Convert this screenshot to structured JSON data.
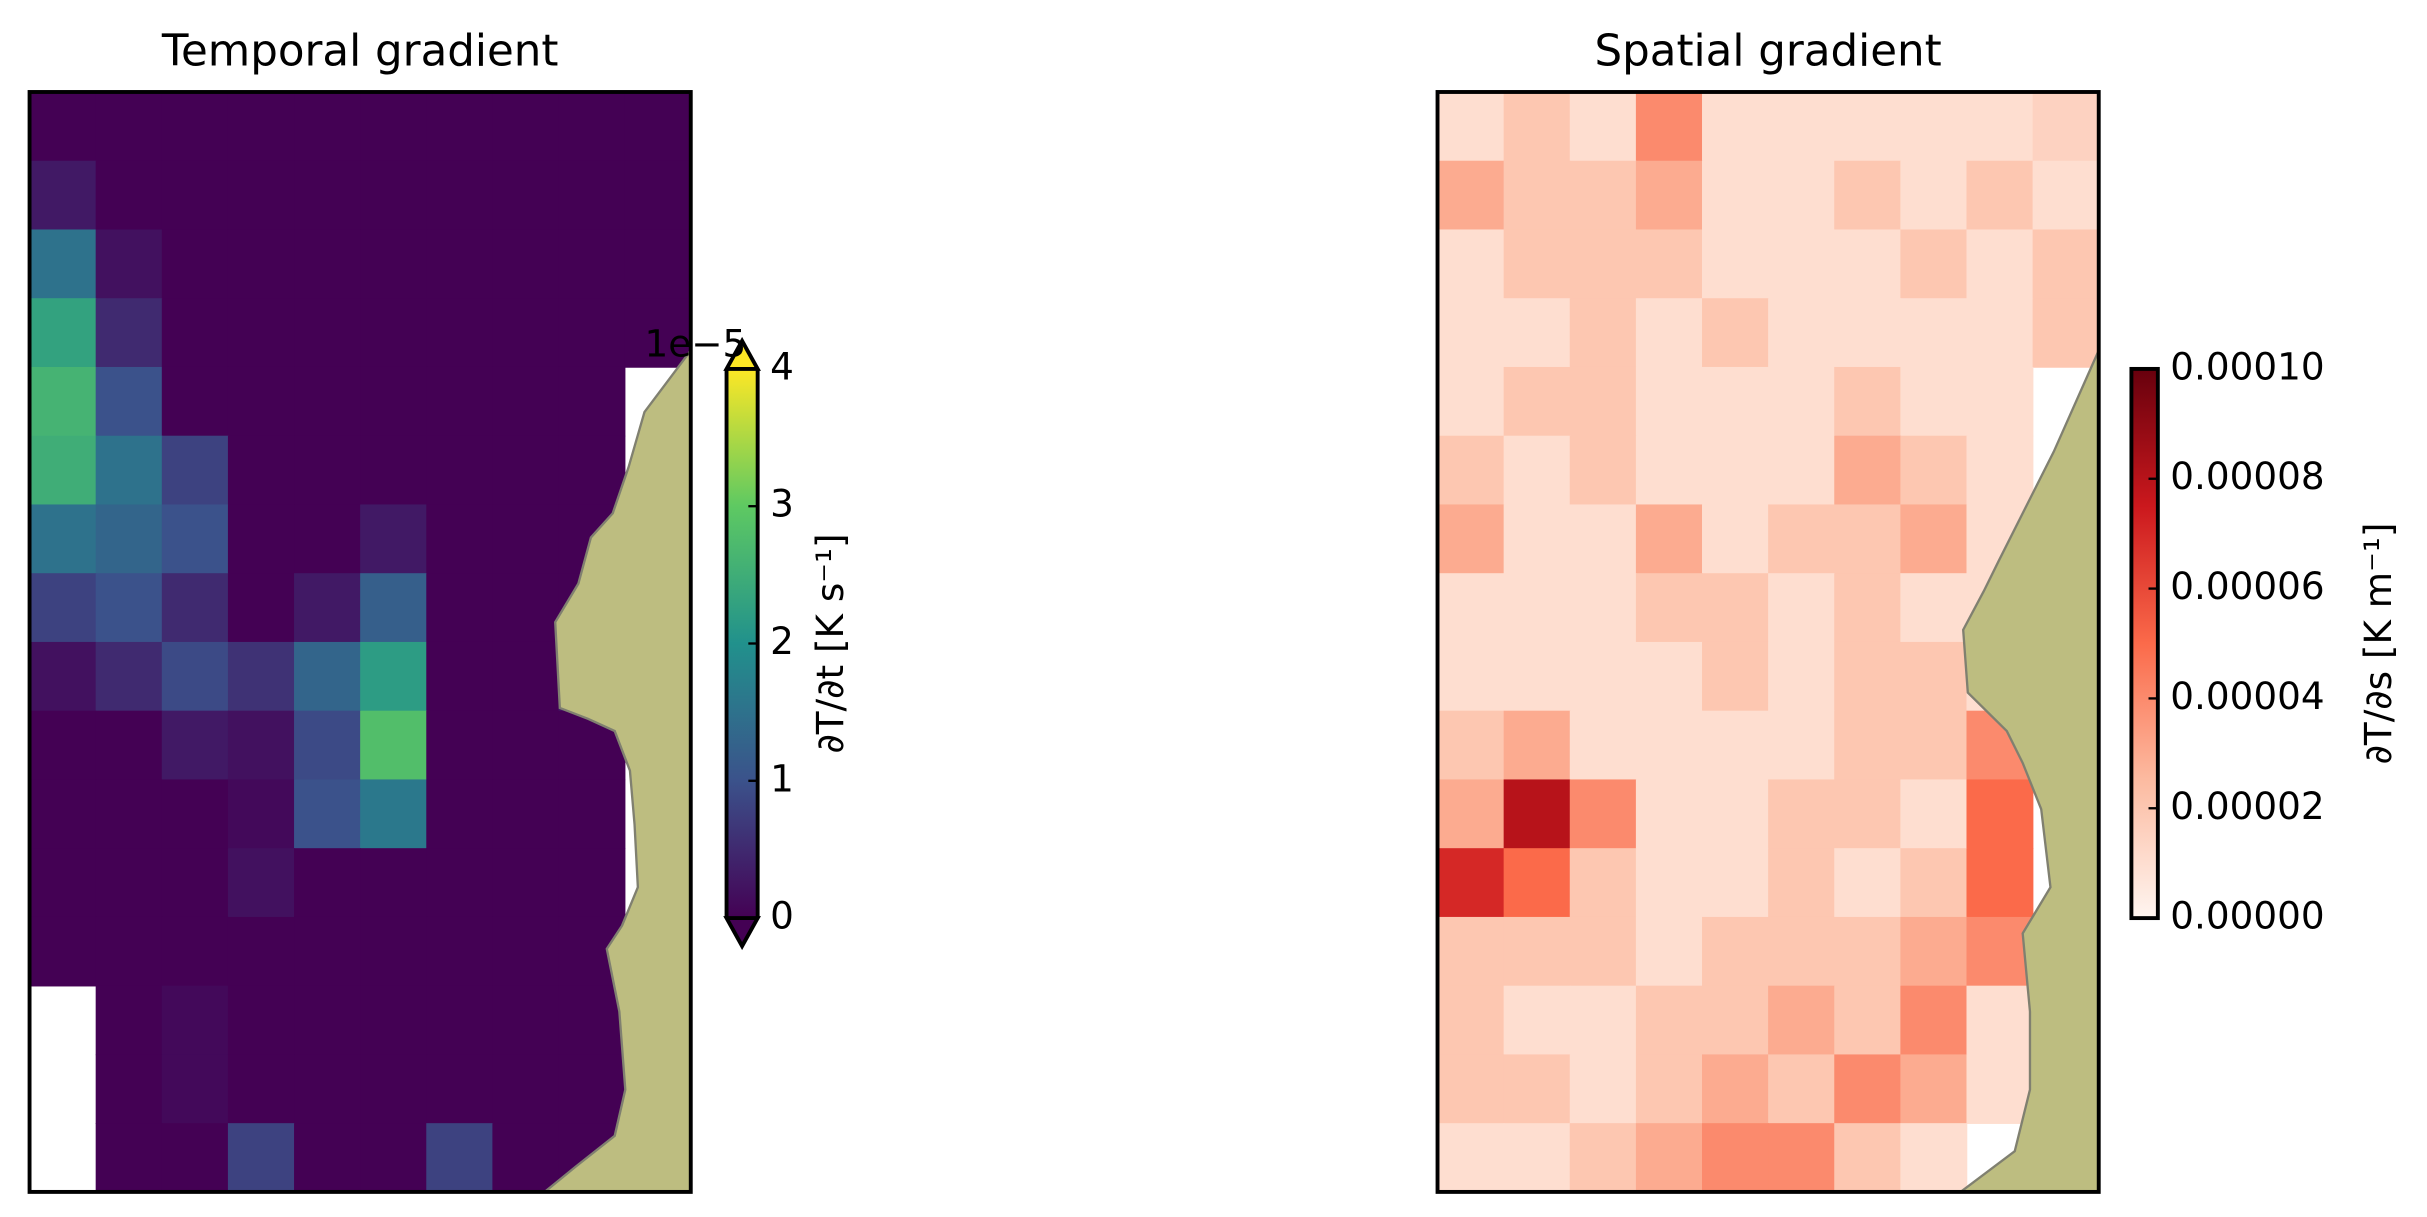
{
  "chart_data": [
    {
      "type": "heatmap",
      "title": "Temporal gradient",
      "cmap": "viridis",
      "extend": "both",
      "zlim": [
        0,
        4
      ],
      "zticks": [
        0,
        1,
        2,
        3,
        4
      ],
      "offset_text": "1e−5",
      "colorbar_label": "∂T/∂t [K s⁻¹]",
      "z": [
        [
          0,
          0,
          0,
          0,
          0,
          0,
          0,
          0,
          0,
          0
        ],
        [
          0.3,
          0,
          0,
          0,
          0,
          0,
          0,
          0,
          0,
          0
        ],
        [
          1.5,
          0.2,
          0,
          0,
          0,
          0,
          0,
          0,
          0,
          0
        ],
        [
          2.3,
          0.5,
          0,
          0,
          0,
          0,
          0,
          0,
          0,
          0
        ],
        [
          2.6,
          1.0,
          0,
          0,
          0,
          0,
          0,
          0,
          0,
          null
        ],
        [
          2.5,
          1.5,
          0.8,
          0,
          0,
          0,
          0,
          0,
          0,
          null
        ],
        [
          1.5,
          1.3,
          1.0,
          0,
          0,
          0.3,
          0,
          0,
          0,
          null
        ],
        [
          0.8,
          1.0,
          0.5,
          0,
          0.3,
          1.2,
          0,
          0,
          0,
          null
        ],
        [
          0.2,
          0.5,
          0.9,
          0.6,
          1.3,
          2.2,
          0,
          0,
          0.3,
          null
        ],
        [
          0,
          0,
          0.3,
          0.2,
          0.9,
          2.8,
          0,
          0,
          0,
          null
        ],
        [
          0,
          0,
          0,
          0.1,
          1.0,
          1.6,
          0,
          0,
          0,
          null
        ],
        [
          0,
          0,
          0,
          0.2,
          0,
          0,
          0,
          0,
          0,
          null
        ],
        [
          0,
          0,
          0,
          0,
          0,
          0,
          0,
          0,
          0,
          null
        ],
        [
          null,
          0,
          0.1,
          0,
          0,
          0,
          0,
          0,
          0,
          null
        ],
        [
          null,
          0,
          0.1,
          0,
          0,
          0,
          0,
          0,
          0,
          null
        ],
        [
          null,
          0,
          0,
          0.8,
          0,
          0,
          0.8,
          0,
          0,
          null
        ]
      ]
    },
    {
      "type": "heatmap",
      "title": "Spatial gradient",
      "cmap": "Reds",
      "extend": "neither",
      "zlim": [
        0,
        0.0001
      ],
      "zticks": [
        {
          "value": 0,
          "label": "0.00000"
        },
        {
          "value": 2e-05,
          "label": "0.00002"
        },
        {
          "value": 4e-05,
          "label": "0.00004"
        },
        {
          "value": 6e-05,
          "label": "0.00006"
        },
        {
          "value": 8e-05,
          "label": "0.00008"
        },
        {
          "value": 0.0001,
          "label": "0.00010"
        }
      ],
      "colorbar_label": "∂T/∂s [K m⁻¹]",
      "z": [
        [
          1e-05,
          2e-05,
          1e-05,
          4e-05,
          1e-05,
          1e-05,
          1e-05,
          1e-05,
          1e-05,
          1.5e-05
        ],
        [
          3e-05,
          2e-05,
          2e-05,
          3e-05,
          1e-05,
          1e-05,
          2e-05,
          1e-05,
          2e-05,
          1e-05
        ],
        [
          1e-05,
          2e-05,
          2e-05,
          2e-05,
          1e-05,
          1e-05,
          1e-05,
          2e-05,
          1e-05,
          2e-05
        ],
        [
          1e-05,
          1e-05,
          2e-05,
          1e-05,
          2e-05,
          1e-05,
          1e-05,
          1e-05,
          1e-05,
          2e-05
        ],
        [
          1e-05,
          2e-05,
          2e-05,
          1e-05,
          1e-05,
          1e-05,
          2e-05,
          1e-05,
          1e-05,
          null
        ],
        [
          2e-05,
          1e-05,
          2e-05,
          1e-05,
          1e-05,
          1e-05,
          3e-05,
          2e-05,
          1e-05,
          null
        ],
        [
          3e-05,
          1e-05,
          1e-05,
          3e-05,
          1e-05,
          2e-05,
          2e-05,
          3e-05,
          1e-05,
          null
        ],
        [
          1e-05,
          1e-05,
          1e-05,
          2e-05,
          2e-05,
          1e-05,
          2e-05,
          1e-05,
          1e-05,
          null
        ],
        [
          1e-05,
          1e-05,
          1e-05,
          1e-05,
          2e-05,
          1e-05,
          2e-05,
          2e-05,
          1e-05,
          null
        ],
        [
          2e-05,
          3e-05,
          1e-05,
          1e-05,
          1e-05,
          1e-05,
          2e-05,
          2e-05,
          4e-05,
          null
        ],
        [
          3e-05,
          8e-05,
          4e-05,
          1e-05,
          1e-05,
          2e-05,
          2e-05,
          1e-05,
          5e-05,
          null
        ],
        [
          7e-05,
          5e-05,
          2e-05,
          1e-05,
          1e-05,
          2e-05,
          1e-05,
          2e-05,
          5e-05,
          null
        ],
        [
          2e-05,
          2e-05,
          2e-05,
          1e-05,
          2e-05,
          2e-05,
          2e-05,
          3e-05,
          4e-05,
          null
        ],
        [
          2e-05,
          1e-05,
          1e-05,
          2e-05,
          2e-05,
          3e-05,
          2e-05,
          4e-05,
          1e-05,
          null
        ],
        [
          2e-05,
          2e-05,
          1e-05,
          2e-05,
          3e-05,
          2e-05,
          4e-05,
          3e-05,
          1e-05,
          null
        ],
        [
          1e-05,
          1e-05,
          2e-05,
          3e-05,
          4e-05,
          4e-05,
          2e-05,
          1e-05,
          null,
          null
        ]
      ]
    }
  ]
}
